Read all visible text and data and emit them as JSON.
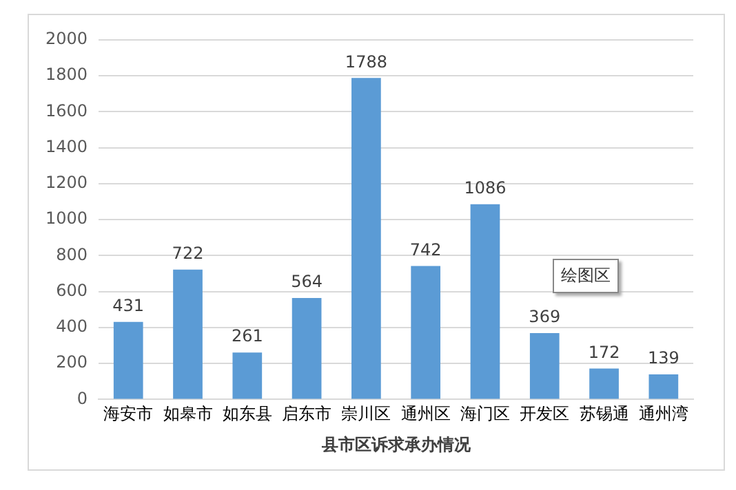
{
  "chart_data": {
    "type": "bar",
    "xlabel": "县市区诉求承办情况",
    "categories": [
      "海安市",
      "如皋市",
      "如东县",
      "启东市",
      "崇川区",
      "通州区",
      "海门区",
      "开发区",
      "苏锡通",
      "通州湾"
    ],
    "values": [
      431,
      722,
      261,
      564,
      1788,
      742,
      1086,
      369,
      172,
      139
    ],
    "color": "#5b9bd5",
    "ylim": [
      0,
      2000
    ],
    "yticks": [
      0,
      200,
      400,
      600,
      800,
      1000,
      1200,
      1400,
      1600,
      1800,
      2000
    ],
    "grid": "y",
    "data_labels": true,
    "legend": false,
    "annotations": [
      "绘图区"
    ]
  }
}
